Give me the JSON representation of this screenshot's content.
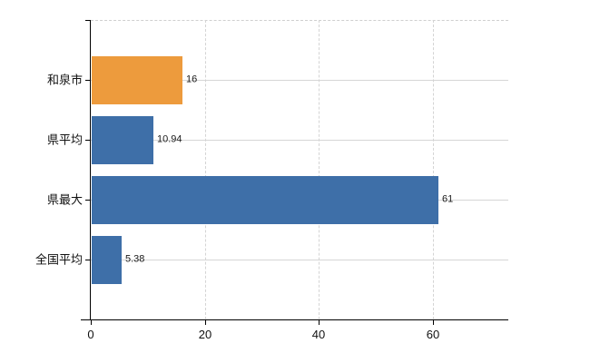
{
  "chart_data": {
    "type": "bar",
    "orientation": "horizontal",
    "title": "",
    "categories": [
      "和泉市",
      "県平均",
      "県最大",
      "全国平均"
    ],
    "values": [
      16,
      10.94,
      61,
      5.38
    ],
    "value_labels": [
      "16",
      "10.94",
      "61",
      "5.38"
    ],
    "bar_colors": [
      "#ED9B3D",
      "#3E6FA8",
      "#3E6FA8",
      "#3E6FA8"
    ],
    "highlight_color": "#ED9B3D",
    "series_color": "#3E6FA8",
    "x_ticks": [
      0,
      20,
      40,
      60
    ],
    "x_tick_labels": [
      "0",
      "20",
      "40",
      "60"
    ],
    "xlim": [
      0,
      73.2
    ],
    "grid": {
      "horizontal_style": "solid",
      "vertical_style": "dashed",
      "color": "#d6d6d6",
      "top_border_style": "dashed"
    },
    "axis_color": "#000000",
    "background_color": "#ffffff",
    "legend": "none"
  }
}
